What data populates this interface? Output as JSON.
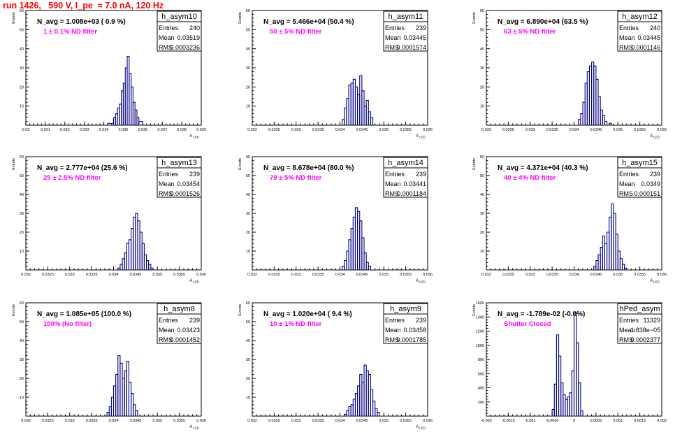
{
  "run_title": "run 1426,   590 V, I_pe  ≈ 7.0 nA, 120 Hz",
  "colors": {
    "histogram": "#000080",
    "title": "#ff0000",
    "filter_label": "#ff00ff",
    "axes": "#000000"
  },
  "chart_data": [
    {
      "type": "bar",
      "histogram": true,
      "name": "h_asym10",
      "ylabel": "Events",
      "xlabel": "A_LED",
      "navg": "N_avg = 1.008e+03 ( 0.9 %)",
      "filter": "1 ± 0.1% ND filter",
      "stats": {
        "entries": "240",
        "mean": "0.03519",
        "rms": "0.0003236"
      },
      "xlim": [
        0.03,
        0.039
      ],
      "ylim": [
        0,
        60
      ],
      "xticks": [
        "0.03",
        "0.031",
        "0.032",
        "0.033",
        "0.034",
        "0.035",
        "0.036",
        "0.037",
        "0.038",
        "0.039"
      ],
      "yticks": [
        "10",
        "20",
        "30",
        "40",
        "50",
        "60"
      ],
      "bins": [
        [
          0.0342,
          0.0345,
          1
        ],
        [
          0.0345,
          0.0346,
          4
        ],
        [
          0.0346,
          0.0347,
          6
        ],
        [
          0.0347,
          0.0348,
          9
        ],
        [
          0.0348,
          0.0349,
          11
        ],
        [
          0.0349,
          0.035,
          18
        ],
        [
          0.035,
          0.0351,
          22
        ],
        [
          0.0351,
          0.0352,
          30
        ],
        [
          0.0352,
          0.0353,
          36
        ],
        [
          0.0353,
          0.0354,
          27
        ],
        [
          0.0354,
          0.0355,
          20
        ],
        [
          0.0355,
          0.0356,
          12
        ],
        [
          0.0356,
          0.0357,
          8
        ],
        [
          0.0357,
          0.0358,
          4
        ],
        [
          0.0358,
          0.036,
          2
        ]
      ]
    },
    {
      "type": "bar",
      "histogram": true,
      "name": "h_asym11",
      "ylabel": "Events",
      "xlabel": "A_LED",
      "navg": "N_avg = 5.466e+04 (50.4 %)",
      "filter": "50 ± 5% ND filter",
      "stats": {
        "entries": "239",
        "mean": "0.03445",
        "rms": "0.0001574"
      },
      "xlim": [
        0.032,
        0.036
      ],
      "ylim": [
        0,
        60
      ],
      "xticks": [
        "0.032",
        "0.0325",
        "0.033",
        "0.0335",
        "0.034",
        "0.0345",
        "0.035",
        "0.0355",
        "0.036"
      ],
      "yticks": [
        "10",
        "20",
        "30",
        "40",
        "50",
        "60"
      ],
      "bins": [
        [
          0.03405,
          0.0341,
          3
        ],
        [
          0.0341,
          0.03415,
          9
        ],
        [
          0.03415,
          0.0342,
          14
        ],
        [
          0.0342,
          0.03425,
          21
        ],
        [
          0.03425,
          0.0343,
          22
        ],
        [
          0.0343,
          0.03435,
          24
        ],
        [
          0.03435,
          0.0344,
          20
        ],
        [
          0.0344,
          0.03445,
          16
        ],
        [
          0.03445,
          0.0345,
          26
        ],
        [
          0.0345,
          0.03455,
          18
        ],
        [
          0.03455,
          0.0346,
          10
        ],
        [
          0.0346,
          0.03465,
          13
        ],
        [
          0.03465,
          0.0347,
          7
        ],
        [
          0.0347,
          0.03475,
          4
        ]
      ]
    },
    {
      "type": "bar",
      "histogram": true,
      "name": "h_asym12",
      "ylabel": "Events",
      "xlabel": "A_LED",
      "navg": "N_avg = 6.890e+04 (63.5 %)",
      "filter": "63 ± 5% ND filter",
      "stats": {
        "entries": "240",
        "mean": "0.03445",
        "rms": "0.0001146"
      },
      "xlim": [
        0.032,
        0.036
      ],
      "ylim": [
        0,
        60
      ],
      "xticks": [
        "0.032",
        "0.0325",
        "0.033",
        "0.0335",
        "0.034",
        "0.0345",
        "0.035",
        "0.0355",
        "0.036"
      ],
      "yticks": [
        "10",
        "20",
        "30",
        "40",
        "50",
        "60"
      ],
      "bins": [
        [
          0.0341,
          0.03415,
          3
        ],
        [
          0.03415,
          0.0342,
          6
        ],
        [
          0.0342,
          0.03425,
          12
        ],
        [
          0.03425,
          0.0343,
          22
        ],
        [
          0.0343,
          0.03435,
          28
        ],
        [
          0.03435,
          0.0344,
          31
        ],
        [
          0.0344,
          0.03445,
          33
        ],
        [
          0.03445,
          0.0345,
          31
        ],
        [
          0.0345,
          0.03455,
          24
        ],
        [
          0.03455,
          0.0346,
          15
        ],
        [
          0.0346,
          0.03465,
          8
        ],
        [
          0.03465,
          0.0347,
          5
        ],
        [
          0.0347,
          0.03475,
          2
        ],
        [
          0.0348,
          0.03485,
          1
        ]
      ]
    },
    {
      "type": "bar",
      "histogram": true,
      "name": "h_asym13",
      "ylabel": "Events",
      "xlabel": "A_LED",
      "navg": "N_avg = 2.777e+04 (25.6 %)",
      "filter": "25 ± 2.5% ND filter",
      "stats": {
        "entries": "239",
        "mean": "0.03454",
        "rms": "0.0001526"
      },
      "xlim": [
        0.032,
        0.036
      ],
      "ylim": [
        0,
        60
      ],
      "xticks": [
        "0.032",
        "0.0325",
        "0.033",
        "0.0335",
        "0.034",
        "0.0345",
        "0.035",
        "0.0355",
        "0.036"
      ],
      "yticks": [
        "10",
        "20",
        "30",
        "40",
        "50",
        "60"
      ],
      "bins": [
        [
          0.0341,
          0.03415,
          1
        ],
        [
          0.03415,
          0.0342,
          3
        ],
        [
          0.0342,
          0.03425,
          6
        ],
        [
          0.03425,
          0.0343,
          9
        ],
        [
          0.0343,
          0.03435,
          14
        ],
        [
          0.03435,
          0.0344,
          16
        ],
        [
          0.0344,
          0.03445,
          22
        ],
        [
          0.03445,
          0.0345,
          28
        ],
        [
          0.0345,
          0.03455,
          30
        ],
        [
          0.03455,
          0.0346,
          26
        ],
        [
          0.0346,
          0.03465,
          20
        ],
        [
          0.03465,
          0.0347,
          14
        ],
        [
          0.0347,
          0.03475,
          8
        ],
        [
          0.03475,
          0.0348,
          5
        ],
        [
          0.0348,
          0.03485,
          3
        ],
        [
          0.03485,
          0.0349,
          1
        ]
      ]
    },
    {
      "type": "bar",
      "histogram": true,
      "name": "h_asym14",
      "ylabel": "Events",
      "xlabel": "A_LED",
      "navg": "N_avg = 8.678e+04 (80.0 %)",
      "filter": "79 ± 5% ND filter",
      "stats": {
        "entries": "239",
        "mean": "0.03441",
        "rms": "0.0001184"
      },
      "xlim": [
        0.032,
        0.036
      ],
      "ylim": [
        0,
        60
      ],
      "xticks": [
        "0.032",
        "0.0325",
        "0.033",
        "0.0335",
        "0.034",
        "0.0345",
        "0.035",
        "0.0355",
        "0.036"
      ],
      "yticks": [
        "10",
        "20",
        "30",
        "40",
        "50",
        "60"
      ],
      "bins": [
        [
          0.03405,
          0.0341,
          2
        ],
        [
          0.0341,
          0.03415,
          5
        ],
        [
          0.03415,
          0.0342,
          10
        ],
        [
          0.0342,
          0.03425,
          16
        ],
        [
          0.03425,
          0.0343,
          22
        ],
        [
          0.0343,
          0.03435,
          28
        ],
        [
          0.03435,
          0.0344,
          33
        ],
        [
          0.0344,
          0.03445,
          31
        ],
        [
          0.03445,
          0.0345,
          26
        ],
        [
          0.0345,
          0.03455,
          17
        ],
        [
          0.03455,
          0.0346,
          9
        ],
        [
          0.0346,
          0.03465,
          4
        ],
        [
          0.03465,
          0.0347,
          2
        ]
      ]
    },
    {
      "type": "bar",
      "histogram": true,
      "name": "h_asym15",
      "ylabel": "Events",
      "xlabel": "A_LED",
      "navg": "N_avg = 4.371e+04 (40.3 %)",
      "filter": "40 ± 4% ND filter",
      "stats": {
        "entries": "239",
        "mean": "0.0349",
        "rms": "0.000151"
      },
      "xlim": [
        0.032,
        0.036
      ],
      "ylim": [
        0,
        60
      ],
      "xticks": [
        "0.032",
        "0.0325",
        "0.033",
        "0.0335",
        "0.034",
        "0.0345",
        "0.035",
        "0.0355",
        "0.036"
      ],
      "yticks": [
        "10",
        "20",
        "30",
        "40",
        "50",
        "60"
      ],
      "bins": [
        [
          0.03445,
          0.0345,
          2
        ],
        [
          0.0345,
          0.03455,
          5
        ],
        [
          0.03455,
          0.0346,
          8
        ],
        [
          0.0346,
          0.03465,
          12
        ],
        [
          0.03465,
          0.0347,
          18
        ],
        [
          0.0347,
          0.03475,
          14
        ],
        [
          0.03475,
          0.0348,
          20
        ],
        [
          0.0348,
          0.03485,
          28
        ],
        [
          0.03485,
          0.0349,
          35
        ],
        [
          0.0349,
          0.03495,
          30
        ],
        [
          0.03495,
          0.035,
          19
        ],
        [
          0.035,
          0.03505,
          10
        ],
        [
          0.03505,
          0.0351,
          6
        ],
        [
          0.0351,
          0.03515,
          3
        ],
        [
          0.03515,
          0.0352,
          1
        ]
      ]
    },
    {
      "type": "bar",
      "histogram": true,
      "name": "h_asym8",
      "ylabel": "Events",
      "xlabel": "A_LED",
      "navg": "N_avg = 1.085e+05 (100.0 %)",
      "filter": "100% (No filter)",
      "stats": {
        "entries": "239",
        "mean": "0.03423",
        "rms": "0.0001452"
      },
      "xlim": [
        0.032,
        0.036
      ],
      "ylim": [
        0,
        60
      ],
      "xticks": [
        "0.032",
        "0.0325",
        "0.033",
        "0.0335",
        "0.034",
        "0.0345",
        "0.035",
        "0.0355",
        "0.036"
      ],
      "yticks": [
        "10",
        "20",
        "30",
        "40",
        "50",
        "60"
      ],
      "bins": [
        [
          0.03385,
          0.0339,
          2
        ],
        [
          0.0339,
          0.03395,
          5
        ],
        [
          0.03395,
          0.034,
          10
        ],
        [
          0.034,
          0.03405,
          16
        ],
        [
          0.03405,
          0.0341,
          22
        ],
        [
          0.0341,
          0.03415,
          32
        ],
        [
          0.03415,
          0.0342,
          28
        ],
        [
          0.0342,
          0.03425,
          20
        ],
        [
          0.03425,
          0.0343,
          24
        ],
        [
          0.0343,
          0.03435,
          29
        ],
        [
          0.03435,
          0.0344,
          18
        ],
        [
          0.0344,
          0.03445,
          12
        ],
        [
          0.03445,
          0.0345,
          6
        ],
        [
          0.0345,
          0.03455,
          3
        ]
      ]
    },
    {
      "type": "bar",
      "histogram": true,
      "name": "h_asym9",
      "ylabel": "Events",
      "xlabel": "A_LED",
      "navg": "N_avg = 1.020e+04 ( 9.4 %)",
      "filter": "10 ± 1% ND filter",
      "stats": {
        "entries": "239",
        "mean": "0.03458",
        "rms": "0.0001785"
      },
      "xlim": [
        0.032,
        0.036
      ],
      "ylim": [
        0,
        60
      ],
      "xticks": [
        "0.032",
        "0.0325",
        "0.033",
        "0.0335",
        "0.034",
        "0.0345",
        "0.035",
        "0.0355",
        "0.036"
      ],
      "yticks": [
        "10",
        "20",
        "30",
        "40",
        "50",
        "60"
      ],
      "bins": [
        [
          0.0341,
          0.03415,
          1
        ],
        [
          0.03415,
          0.0342,
          3
        ],
        [
          0.0342,
          0.03425,
          5
        ],
        [
          0.03425,
          0.0343,
          6
        ],
        [
          0.0343,
          0.03435,
          9
        ],
        [
          0.03435,
          0.0344,
          12
        ],
        [
          0.0344,
          0.03445,
          16
        ],
        [
          0.03445,
          0.0345,
          22
        ],
        [
          0.0345,
          0.03455,
          18
        ],
        [
          0.03455,
          0.0346,
          27
        ],
        [
          0.0346,
          0.03465,
          24
        ],
        [
          0.03465,
          0.0347,
          22
        ],
        [
          0.0347,
          0.03475,
          14
        ],
        [
          0.03475,
          0.0348,
          8
        ],
        [
          0.0348,
          0.03485,
          4
        ],
        [
          0.03485,
          0.0349,
          2
        ]
      ]
    },
    {
      "type": "bar",
      "histogram": true,
      "name": "hPed_asym",
      "ylabel": "Events",
      "xlabel": "",
      "navg": "N_avg = -1.789e-02 (-0.0%)",
      "filter": "Shutter Closed",
      "stats": {
        "entries": "11329",
        "mean": "1.838e−05",
        "rms": "0.0002377"
      },
      "xlim": [
        -0.002,
        0.002
      ],
      "ylim": [
        0,
        1700
      ],
      "xticks": [
        "-0.002",
        "-0.0015",
        "-0.001",
        "-0.0005",
        "0",
        "0.0005",
        "0.001",
        "0.0015",
        "0.002"
      ],
      "yticks": [
        "200",
        "400",
        "600",
        "800",
        "1000",
        "1200",
        "1400",
        "1600"
      ],
      "bins": [
        [
          -0.0005,
          -0.00045,
          100
        ],
        [
          -0.00045,
          -0.0004,
          480
        ],
        [
          -0.0004,
          -0.00035,
          1220
        ],
        [
          -0.00035,
          -0.0003,
          900
        ],
        [
          -0.0003,
          -0.00025,
          500
        ],
        [
          -0.00025,
          -0.0002,
          320
        ],
        [
          -0.0002,
          -0.00015,
          250
        ],
        [
          -0.00015,
          -0.0001,
          290
        ],
        [
          -0.0001,
          -5e-05,
          350
        ],
        [
          -5e-05,
          0.0,
          680
        ],
        [
          0.0,
          5e-05,
          1550
        ],
        [
          5e-05,
          0.0001,
          1100
        ],
        [
          0.0001,
          0.00015,
          500
        ],
        [
          0.00015,
          0.0002,
          80
        ]
      ]
    }
  ]
}
